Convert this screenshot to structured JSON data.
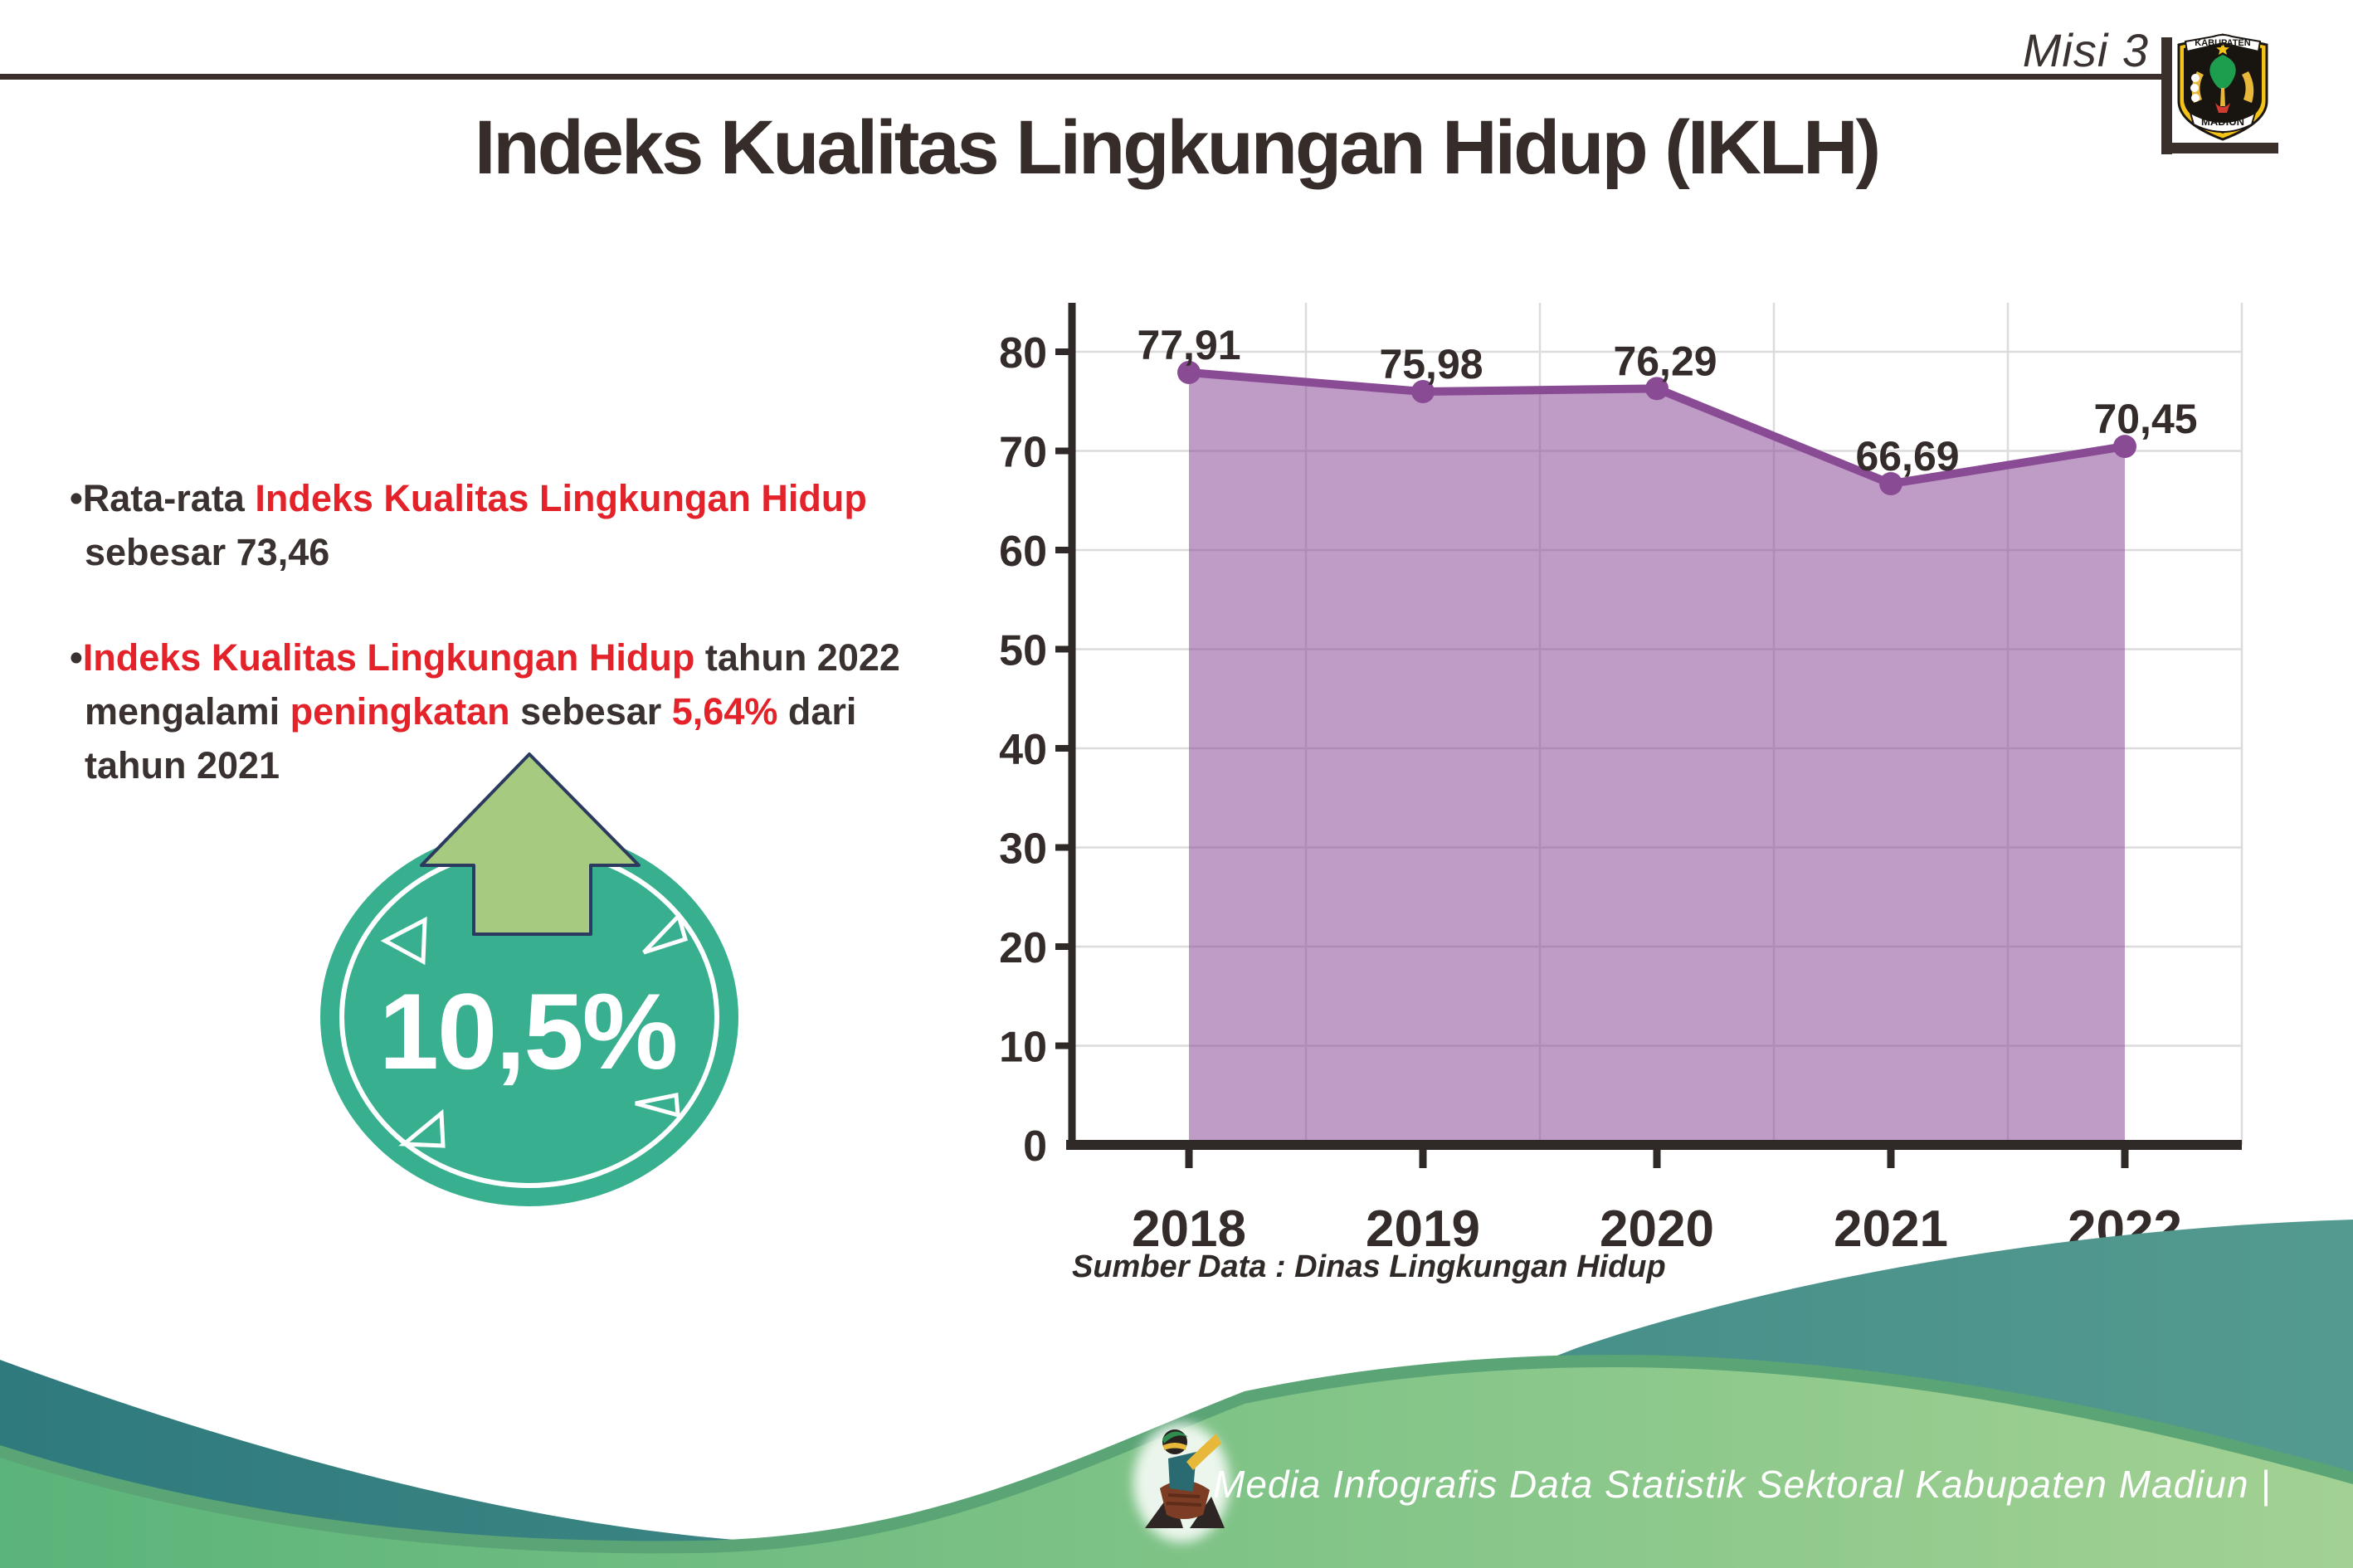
{
  "header": {
    "misi": "Misi 3",
    "title": "Indeks Kualitas Lingkungan Hidup (IKLH)",
    "logo_top": "KABUPATEN",
    "logo_bottom": "MADIUN"
  },
  "bullets": [
    {
      "lines": [
        [
          {
            "t": "•Rata-rata ",
            "c": "dark"
          },
          {
            "t": "Indeks Kualitas Lingkungan Hidup",
            "c": "red"
          }
        ],
        [
          {
            "t": "sebesar 73,46",
            "c": "dark"
          }
        ]
      ]
    },
    {
      "lines": [
        [
          {
            "t": "•",
            "c": "dark"
          },
          {
            "t": "Indeks Kualitas Lingkungan Hidup",
            "c": "red"
          },
          {
            "t": " tahun 2022",
            "c": "dark"
          }
        ],
        [
          {
            "t": "mengalami ",
            "c": "dark"
          },
          {
            "t": "peningkatan",
            "c": "red"
          },
          {
            "t": " sebesar ",
            "c": "dark"
          },
          {
            "t": "5,64%",
            "c": "red"
          },
          {
            "t": " dari",
            "c": "dark"
          }
        ],
        [
          {
            "t": "tahun 2021",
            "c": "dark"
          }
        ]
      ]
    }
  ],
  "badge": {
    "value": "10,5%"
  },
  "chart_data": {
    "type": "area",
    "categories": [
      "2018",
      "2019",
      "2020",
      "2021",
      "2022"
    ],
    "values": [
      77.91,
      75.98,
      76.29,
      66.69,
      70.45
    ],
    "point_labels": [
      "77,91",
      "75,98",
      "76,29",
      "66,69",
      "70,45"
    ],
    "yticks": [
      0,
      10,
      20,
      30,
      40,
      50,
      60,
      70,
      80
    ],
    "ylim": [
      0,
      85
    ],
    "grid": true,
    "legend": "none",
    "line_color": "#8a4b95",
    "fill_color": "#8a4b95",
    "fill_opacity": 0.55,
    "source": "Sumber Data : Dinas Lingkungan Hidup"
  },
  "footer": {
    "credit": "Media Infografis Data Statistik Sektoral Kabupaten Madiun |"
  },
  "colors": {
    "red_accent": "#e3222a",
    "dark_text": "#3a3231",
    "line_purple": "#8a4b95",
    "fill_purple": "#b48ec0",
    "badge_teal": "#38b090",
    "arrow_green": "#a6ca80",
    "arrow_outline": "#2b3a5e",
    "wave_teal_left": "#2f7a7d",
    "wave_teal_right": "#549a90",
    "wave_green_left": "#5bb47a",
    "wave_green_right": "#a2d193",
    "wave_edge": "#5aa475",
    "grid_gray": "#dcdcdc"
  }
}
